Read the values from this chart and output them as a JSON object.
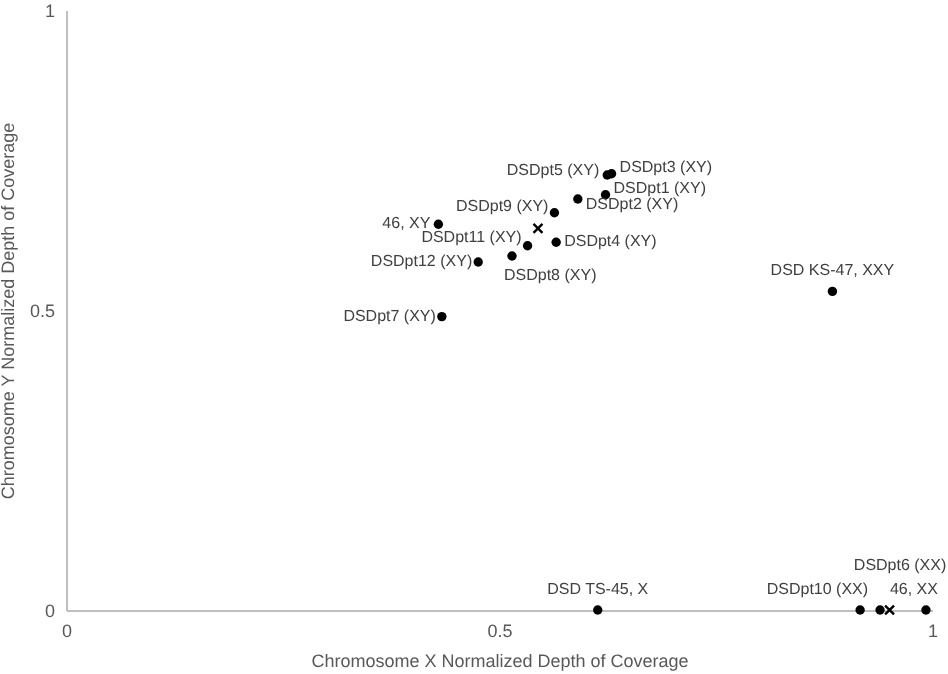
{
  "chart_data": {
    "type": "scatter",
    "xlabel": "Chromosome X Normalized Depth of Coverage",
    "ylabel": "Chromosome Y Normalized Depth of Coverage",
    "xlim": [
      0,
      1
    ],
    "xticks": [
      0,
      0.5,
      1
    ],
    "ylim": [
      0,
      1
    ],
    "yticks": [
      0,
      0.5,
      1
    ],
    "grid": false,
    "series": [
      {
        "color": "#000000",
        "marker": "circle",
        "x": [
          0.43,
          0.625,
          0.63,
          0.623,
          0.591,
          0.564,
          0.533,
          0.566,
          0.476,
          0.515,
          0.434,
          0.885,
          0.614,
          0.917,
          0.94,
          0.993
        ],
        "values": [
          0.643,
          0.725,
          0.727,
          0.692,
          0.685,
          0.662,
          0.607,
          0.613,
          0.58,
          0.59,
          0.489,
          0.531,
          0,
          0,
          0,
          0
        ]
      },
      {
        "color": "#000000",
        "marker": "cross",
        "x": [
          0.545,
          0.951
        ],
        "values": [
          0.636,
          0
        ]
      }
    ],
    "annotations": [
      {
        "text": "46, XY",
        "x": 0.43,
        "y": 0.643
      },
      {
        "text": "DSDpt5 (XY)",
        "x": 0.625,
        "y": 0.725
      },
      {
        "text": "DSDpt3 (XY)",
        "x": 0.63,
        "y": 0.727
      },
      {
        "text": "DSDpt1 (XY)",
        "x": 0.623,
        "y": 0.692
      },
      {
        "text": "DSDpt2 (XY)",
        "x": 0.591,
        "y": 0.685
      },
      {
        "text": "DSDpt9 (XY)",
        "x": 0.564,
        "y": 0.662
      },
      {
        "text": "DSDpt11 (XY)",
        "x": 0.533,
        "y": 0.607
      },
      {
        "text": "DSDpt4 (XY)",
        "x": 0.566,
        "y": 0.613
      },
      {
        "text": "DSDpt12 (XY)",
        "x": 0.476,
        "y": 0.58
      },
      {
        "text": "DSDpt8 (XY)",
        "x": 0.515,
        "y": 0.59
      },
      {
        "text": "DSDpt7 (XY)",
        "x": 0.434,
        "y": 0.489
      },
      {
        "text": "DSD KS-47, XXY",
        "x": 0.885,
        "y": 0.531
      },
      {
        "text": "DSD TS-45, X",
        "x": 0.614,
        "y": 0
      },
      {
        "text": "DSDpt10 (XX)",
        "x": 0.917,
        "y": 0
      },
      {
        "text": "DSDpt6 (XX)",
        "x": 0.94,
        "y": 0
      },
      {
        "text": "46, XX",
        "x": 0.993,
        "y": 0
      }
    ]
  }
}
